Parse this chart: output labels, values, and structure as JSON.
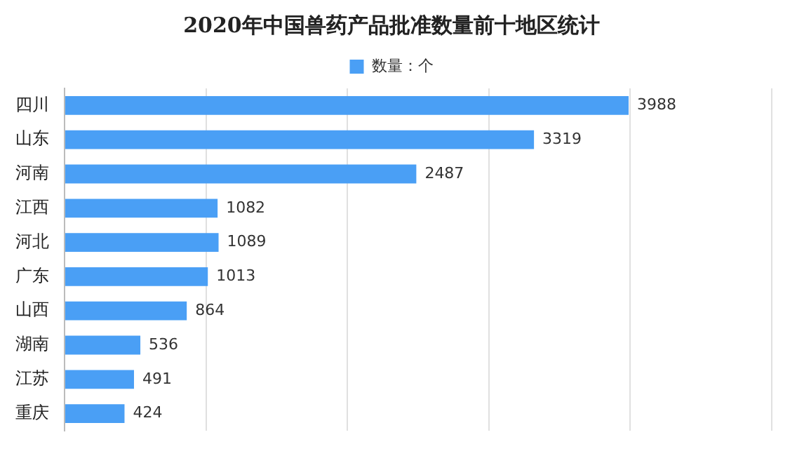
{
  "chart_data": {
    "type": "bar",
    "orientation": "horizontal",
    "title": "2020年中国兽药产品批准数量前十地区统计",
    "categories": [
      "四川",
      "山东",
      "河南",
      "江西",
      "河北",
      "广东",
      "山西",
      "湖南",
      "江苏",
      "重庆"
    ],
    "series": [
      {
        "name": "数量：个",
        "color": "#4a9ff5",
        "values": [
          3988,
          3319,
          2487,
          1082,
          1089,
          1013,
          864,
          536,
          491,
          424
        ]
      }
    ],
    "xlim": [
      0,
      5000
    ],
    "xticks": [
      {
        "value": 0,
        "label": null
      },
      {
        "value": 1000,
        "label": null
      },
      {
        "value": 2000,
        "label": null
      },
      {
        "value": 3000,
        "label": null
      },
      {
        "value": 4000,
        "label": null
      },
      {
        "value": 5000,
        "label": null
      }
    ],
    "tick_labels": "y",
    "grid": "x",
    "legend": "top",
    "data_labels": true
  }
}
